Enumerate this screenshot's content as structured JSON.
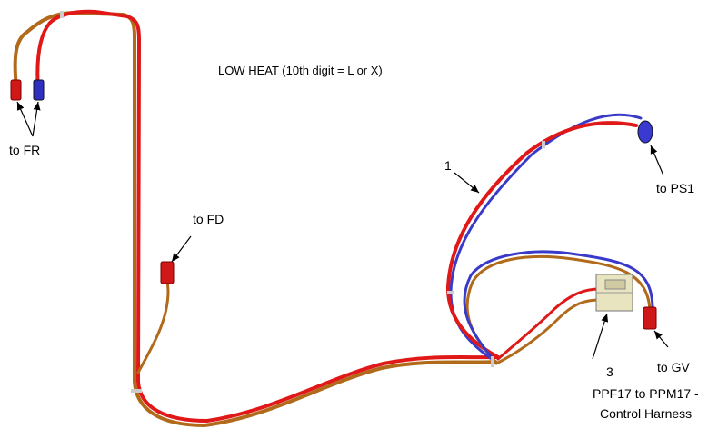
{
  "title": "LOW HEAT (10th digit = L or X)",
  "labels": {
    "fr": "to FR",
    "fd": "to FD",
    "item1": "1",
    "ps1": "to PS1",
    "gv": "to GV",
    "item3": "3",
    "harness_line1": "PPF17 to PPM17 -",
    "harness_line2": "Control Harness"
  }
}
